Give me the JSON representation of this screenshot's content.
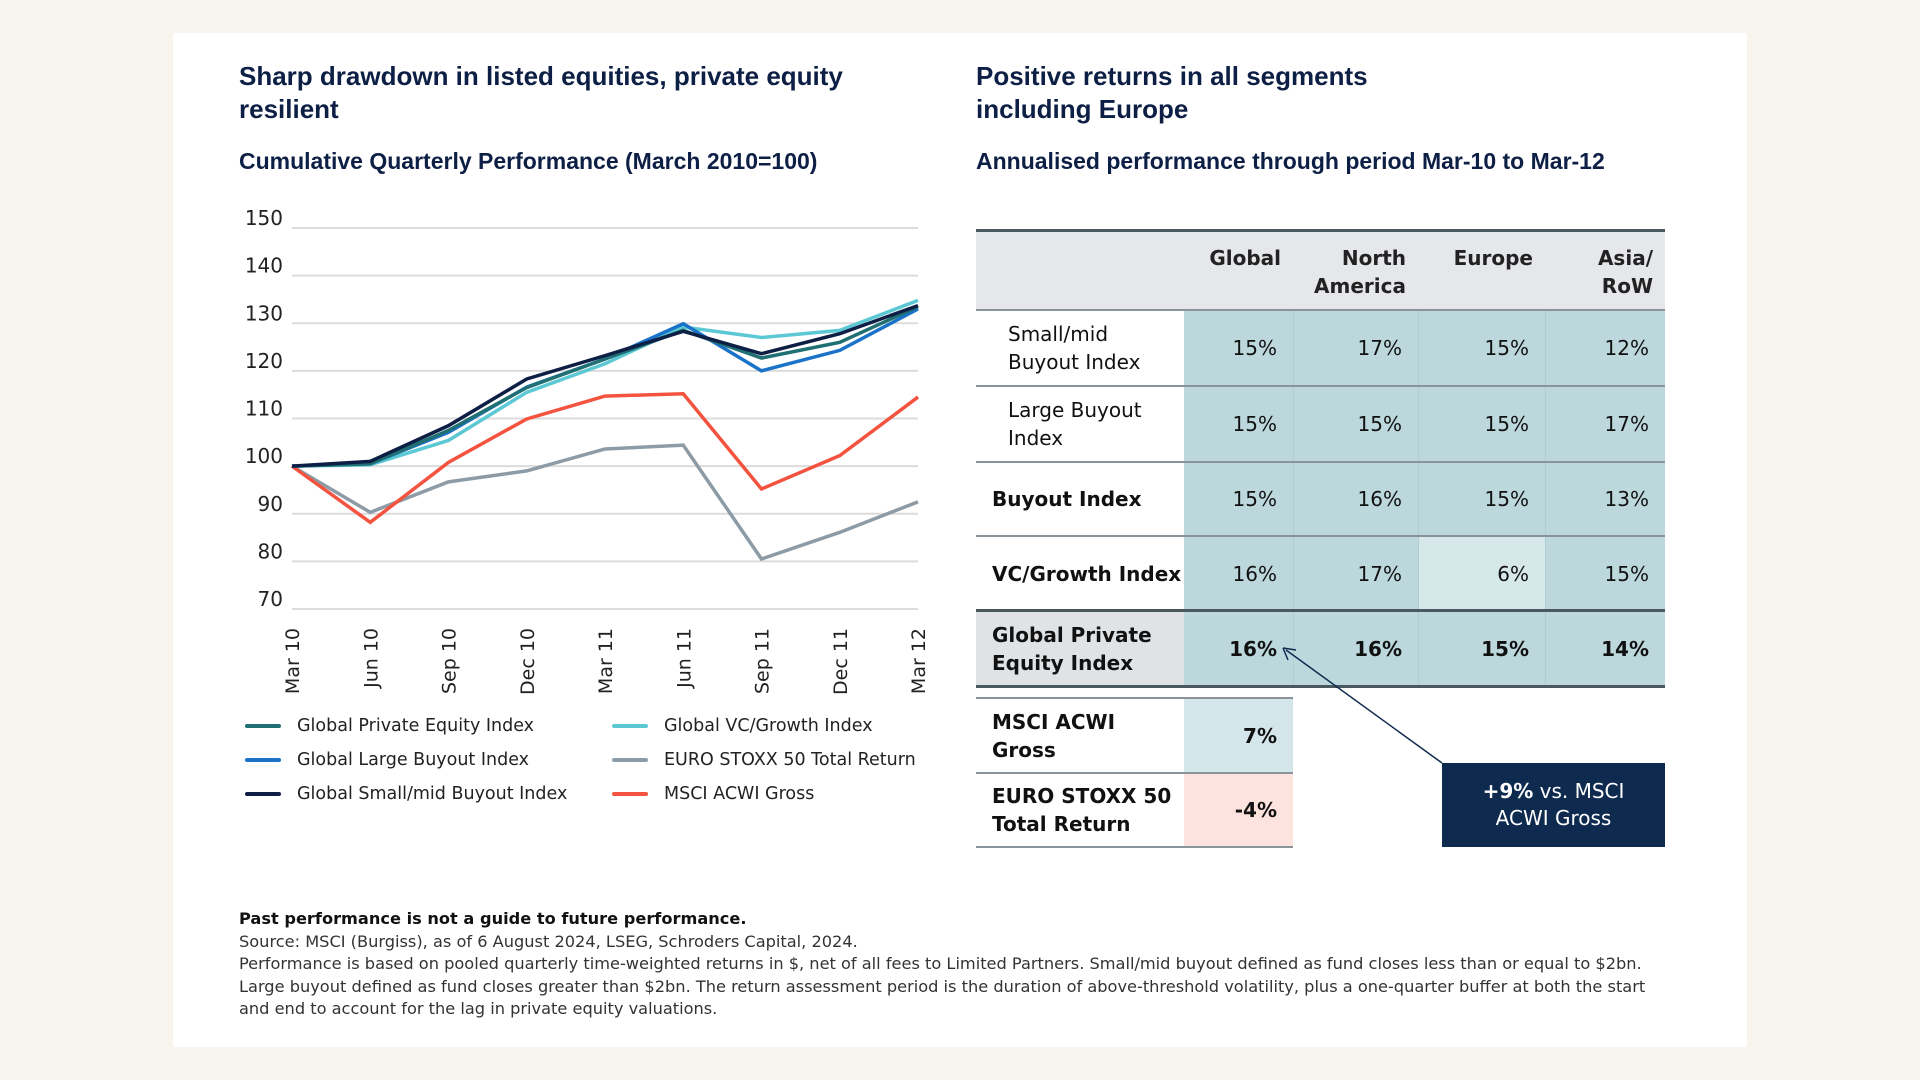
{
  "left_panel": {
    "title": "Sharp drawdown in listed equities, private equity resilient",
    "subtitle": "Cumulative Quarterly Performance (March 2010=100)"
  },
  "right_panel": {
    "title": "Positive returns in all segments including Europe",
    "subtitle": "Annualised performance through period Mar-10 to Mar-12"
  },
  "chart_data": {
    "type": "line",
    "title": "Cumulative Quarterly Performance (March 2010=100)",
    "x": [
      "Mar 10",
      "Jun 10",
      "Sep 10",
      "Dec 10",
      "Mar 11",
      "Jun 11",
      "Sep 11",
      "Dec 11",
      "Mar 12"
    ],
    "ylim": [
      70,
      150
    ],
    "yticks": [
      150,
      140,
      130,
      120,
      110,
      100,
      90,
      80,
      70
    ],
    "grid": true,
    "legend_position": "bottom",
    "series": [
      {
        "name": "Global Private Equity Index",
        "color": "#1f6f73",
        "values": [
          100,
          100.5,
          107.5,
          116.5,
          122.5,
          128.5,
          122.7,
          126,
          133.5
        ]
      },
      {
        "name": "Global VC/Growth Index",
        "color": "#5bc8d4",
        "values": [
          100,
          100.3,
          105.4,
          115.5,
          121.5,
          129.2,
          127,
          128.5,
          134.8
        ]
      },
      {
        "name": "Global Large Buyout Index",
        "color": "#1a73c9",
        "values": [
          100,
          100.5,
          107.1,
          116.6,
          122.5,
          129.9,
          120,
          124.3,
          133
        ]
      },
      {
        "name": "EURO STOXX 50 Total Return",
        "color": "#8c9ba5",
        "values": [
          100,
          90.3,
          96.7,
          99,
          103.6,
          104.4,
          80.5,
          86.1,
          92.5
        ]
      },
      {
        "name": "Global Small/mid Buyout Index",
        "color": "#0d1f45",
        "values": [
          100,
          101,
          108.5,
          118.3,
          123.2,
          128.3,
          123.6,
          127.8,
          133.7
        ]
      },
      {
        "name": "MSCI ACWI Gross",
        "color": "#f4533f",
        "values": [
          100,
          88.2,
          100.8,
          109.9,
          114.7,
          115.2,
          95.2,
          102.2,
          114.5
        ]
      }
    ]
  },
  "table": {
    "headers": [
      "Global",
      "North America",
      "Europe",
      "Asia/ RoW"
    ],
    "rows": [
      {
        "label": "Small/mid Buyout Index",
        "values": [
          "15%",
          "17%",
          "15%",
          "12%"
        ]
      },
      {
        "label": "Large Buyout Index",
        "values": [
          "15%",
          "15%",
          "15%",
          "17%"
        ]
      },
      {
        "label": "Buyout Index",
        "values": [
          "15%",
          "16%",
          "15%",
          "13%"
        ]
      },
      {
        "label": "VC/Growth Index",
        "values": [
          "16%",
          "17%",
          "6%",
          "15%"
        ]
      },
      {
        "label": "Global Private Equity Index",
        "values": [
          "16%",
          "16%",
          "15%",
          "14%"
        ]
      }
    ],
    "benchmarks": [
      {
        "label": "MSCI ACWI Gross",
        "value": "7%"
      },
      {
        "label": "EURO STOXX 50 Total Return",
        "value": "-4%"
      }
    ],
    "colors": {
      "cell": "#bcd8dc",
      "cell_light": "#d6e8ea",
      "header": "#e5e7ea",
      "positive": "#d5e6ea",
      "negative": "#fde3de",
      "callout": "#0f2a4f"
    }
  },
  "callout": {
    "bold": "+9%",
    "text": " vs. MSCI ACWI Gross"
  },
  "footnote": {
    "bold": "Past performance is not a guide to future performance.",
    "source": "Source: MSCI (Burgiss), as of 6 August 2024, LSEG, Schroders Capital, 2024.",
    "note": "Performance is based on pooled quarterly time-weighted returns in $, net of all fees to Limited Partners. Small/mid buyout defined as fund closes less than or equal to $2bn. Large buyout defined as fund closes greater than $2bn. The return assessment period is the duration of above-threshold volatility, plus a one-quarter buffer at both the start and end to account for the lag in private equity valuations."
  }
}
